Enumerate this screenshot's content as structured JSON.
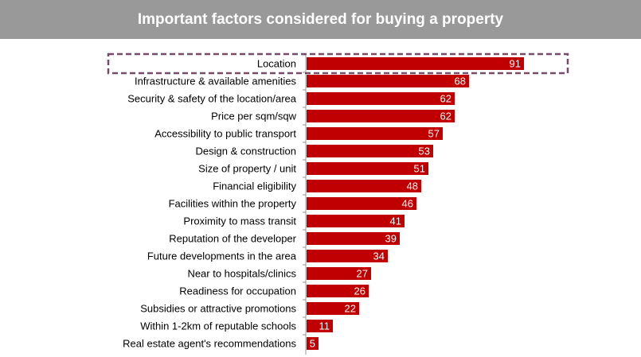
{
  "title": "Important factors considered for buying a property",
  "colors": {
    "bar": "#c00000",
    "title_bar": "#999999",
    "highlight_border": "#7a4a6b"
  },
  "chart_data": {
    "type": "bar",
    "orientation": "horizontal",
    "title": "Important factors considered for buying a property",
    "categories": [
      "Location",
      "Infrastructure & available amenities",
      "Security & safety of the location/area",
      "Price per sqm/sqw",
      "Accessibility to public transport",
      "Design & construction",
      "Size of property / unit",
      "Financial eligibility",
      "Facilities within the property",
      "Proximity to mass transit",
      "Reputation of the developer",
      "Future developments in the area",
      "Near to hospitals/clinics",
      "Readiness for occupation",
      "Subsidies or attractive promotions",
      "Within 1-2km of reputable schools",
      "Real estate agent's recommendations"
    ],
    "values": [
      91,
      68,
      62,
      62,
      57,
      53,
      51,
      48,
      46,
      41,
      39,
      34,
      27,
      26,
      22,
      11,
      5
    ],
    "highlighted_category": "Location",
    "xlim": [
      0,
      100
    ],
    "grid": false
  }
}
